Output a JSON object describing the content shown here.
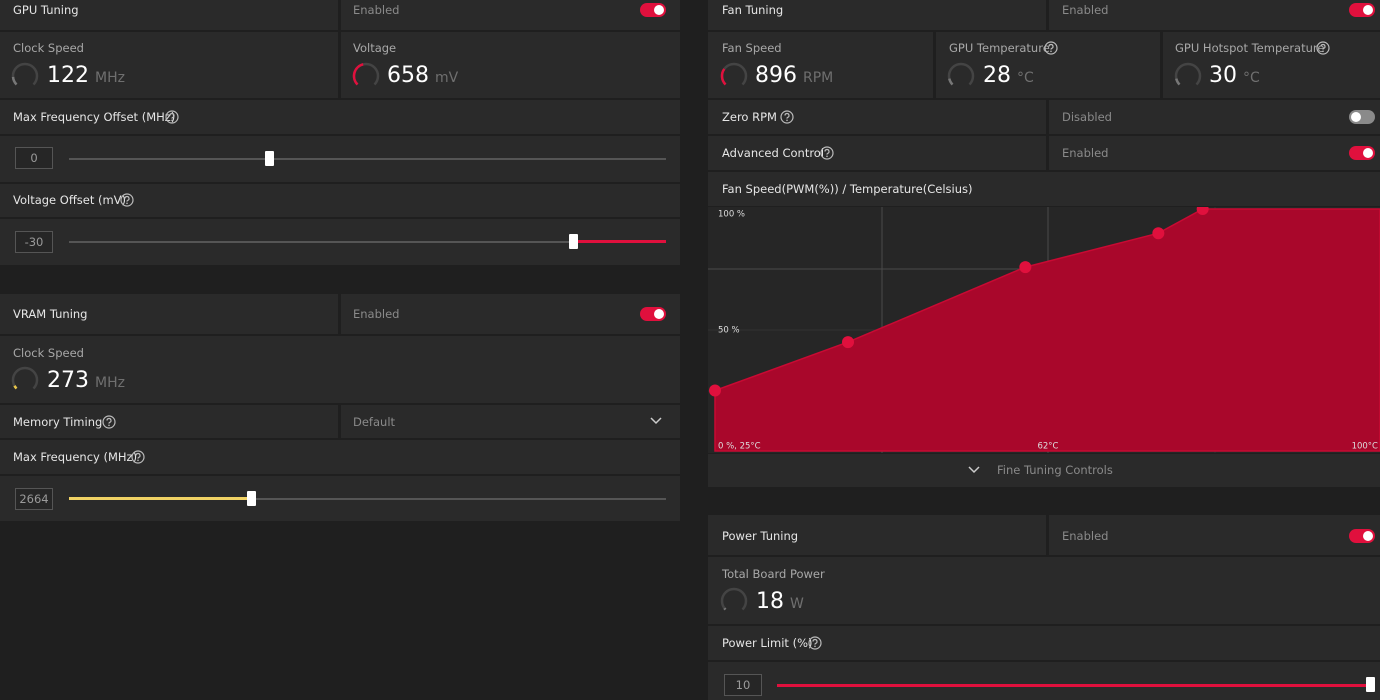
{
  "gpu_tuning": {
    "title": "GPU Tuning",
    "status": "Enabled",
    "clock_speed": {
      "label": "Clock Speed",
      "value": 122,
      "unit": "MHz"
    },
    "voltage": {
      "label": "Voltage",
      "value": 658,
      "unit": "mV"
    },
    "max_frequency_offset": {
      "label": "Max Frequency Offset (MHz)",
      "value": 0
    },
    "voltage_offset": {
      "label": "Voltage Offset (mV)",
      "value": -30
    }
  },
  "vram_tuning": {
    "title": "VRAM Tuning",
    "status": "Enabled",
    "clock_speed": {
      "label": "Clock Speed",
      "value": 273,
      "unit": "MHz"
    },
    "memory_timing": {
      "label": "Memory Timing",
      "value": "Default"
    },
    "max_frequency": {
      "label": "Max Frequency (MHz)",
      "value": 2664
    }
  },
  "fan_tuning": {
    "title": "Fan Tuning",
    "status": "Enabled",
    "fan_speed": {
      "label": "Fan Speed",
      "value": 896,
      "unit": "RPM"
    },
    "gpu_temperature": {
      "label": "GPU Temperature",
      "value": 28,
      "unit": "°C"
    },
    "gpu_hotspot_temperature": {
      "label": "GPU Hotspot Temperature",
      "value": 30,
      "unit": "°C"
    },
    "zero_rpm": {
      "label": "Zero RPM",
      "status": "Disabled"
    },
    "advanced_control": {
      "label": "Advanced Control",
      "status": "Enabled"
    },
    "fan_curve": {
      "title": "Fan Speed(PWM(%)) / Temperature(Celsius)",
      "x": [
        25,
        40,
        60,
        75,
        80,
        100
      ],
      "y": [
        25,
        45,
        76,
        90,
        100,
        100
      ],
      "xlim": [
        25,
        100
      ],
      "ylim": [
        0,
        100
      ],
      "axis_labels": [
        "100 %",
        "50 %",
        "0 %, 25°C",
        "62°C",
        "100°C"
      ]
    },
    "fine_tuning": "Fine Tuning Controls"
  },
  "power_tuning": {
    "title": "Power Tuning",
    "status": "Enabled",
    "total_board_power": {
      "label": "Total Board Power",
      "value": 18,
      "unit": "W"
    },
    "power_limit": {
      "label": "Power Limit (%)",
      "value": 10
    }
  }
}
